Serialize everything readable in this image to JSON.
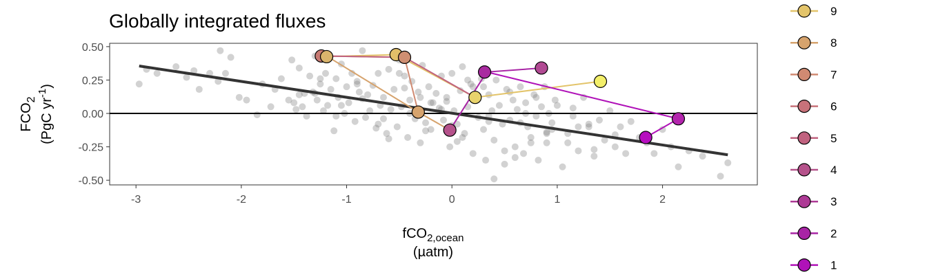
{
  "chart_data": {
    "type": "scatter",
    "title": "Globally integrated fluxes",
    "xlabel": {
      "base": "fCO",
      "sub": "2,ocean",
      "unit": "(µatm)"
    },
    "ylabel": {
      "base": "FCO",
      "sub": "2",
      "unit_pre": "(PgC yr",
      "unit_sup": "-1",
      "unit_post": ")"
    },
    "xlim": [
      -3.25,
      2.9
    ],
    "ylim": [
      -0.535,
      0.525
    ],
    "x_ticks": [
      -3,
      -2,
      -1,
      0,
      1,
      2
    ],
    "x_tick_labels": [
      "-3",
      "-2",
      "-1",
      "0",
      "1",
      "2"
    ],
    "y_ticks": [
      -0.5,
      -0.25,
      0,
      0.25,
      0.5
    ],
    "y_tick_labels": [
      "-0.50",
      "-0.25",
      "0.00",
      "0.25",
      "0.50"
    ],
    "zero_line": 0,
    "grid": false,
    "regression_line": {
      "x": [
        -2.97,
        2.62
      ],
      "y": [
        0.355,
        -0.31
      ],
      "color": "#333333"
    },
    "background_points": {
      "color": "#7f7f7f",
      "x": [
        -2.97,
        -2.9,
        -2.8,
        -2.62,
        -2.52,
        -2.45,
        -2.4,
        -2.3,
        -2.22,
        -2.2,
        -2.15,
        -2.1,
        -2.02,
        -1.95,
        -1.85,
        -1.8,
        -1.72,
        -1.68,
        -1.62,
        -1.55,
        -1.52,
        -1.48,
        -1.45,
        -1.42,
        -1.4,
        -1.38,
        -1.35,
        -1.32,
        -1.3,
        -1.28,
        -1.25,
        -1.22,
        -1.2,
        -1.18,
        -1.15,
        -1.12,
        -1.1,
        -1.08,
        -1.05,
        -1.02,
        -1.0,
        -0.98,
        -0.95,
        -0.92,
        -0.9,
        -0.88,
        -0.85,
        -0.82,
        -0.8,
        -0.78,
        -0.75,
        -0.72,
        -0.7,
        -0.68,
        -0.65,
        -0.62,
        -0.6,
        -0.58,
        -0.55,
        -0.52,
        -0.5,
        -0.48,
        -0.45,
        -0.42,
        -0.4,
        -0.38,
        -0.35,
        -0.32,
        -0.3,
        -0.28,
        -0.25,
        -0.22,
        -0.2,
        -0.18,
        -0.15,
        -0.12,
        -0.1,
        -0.08,
        -0.05,
        -0.02,
        0.0,
        0.02,
        0.05,
        0.08,
        0.1,
        0.12,
        0.15,
        0.18,
        0.2,
        0.22,
        0.25,
        0.28,
        0.3,
        0.32,
        0.35,
        0.38,
        0.4,
        0.42,
        0.45,
        0.48,
        0.5,
        0.52,
        0.55,
        0.58,
        0.6,
        0.62,
        0.65,
        0.68,
        0.7,
        0.72,
        0.75,
        0.78,
        0.8,
        0.82,
        0.85,
        0.88,
        0.9,
        0.92,
        0.95,
        0.98,
        1.0,
        1.05,
        1.1,
        1.15,
        1.2,
        1.25,
        1.3,
        1.35,
        1.4,
        1.45,
        1.5,
        1.55,
        1.6,
        1.65,
        1.7,
        1.78,
        1.85,
        1.92,
        2.0,
        2.08,
        2.15,
        2.25,
        2.38,
        2.55,
        2.62,
        -1.5,
        -1.3,
        -1.1,
        -0.9,
        -0.7,
        -0.5,
        -0.3,
        -0.1,
        0.1,
        0.3,
        0.5,
        0.7,
        0.9,
        1.1,
        1.3,
        -1.45,
        -1.25,
        -1.05,
        -0.85,
        -0.65,
        -0.45,
        -0.25,
        -0.05,
        0.15,
        0.35,
        0.55,
        0.75,
        0.95,
        1.15,
        1.35,
        1.55,
        -0.6,
        -0.2,
        0.2,
        0.6,
        0.9,
        1.2,
        -0.4,
        0.0,
        0.4,
        0.8,
        0.05,
        0.35,
        0.65
      ],
      "y": [
        0.22,
        0.33,
        0.3,
        0.35,
        0.27,
        0.32,
        0.18,
        0.3,
        0.24,
        0.47,
        0.3,
        0.42,
        0.12,
        0.1,
        -0.01,
        0.22,
        0.05,
        0.18,
        0.26,
        0.1,
        0.4,
        0.03,
        0.34,
        0.05,
        0.15,
        -0.02,
        0.28,
        0.16,
        0.43,
        0.1,
        0.22,
        0.02,
        0.3,
        0.06,
        0.18,
        -0.13,
        0.26,
        0.12,
        0.37,
        0.0,
        0.2,
        0.08,
        0.3,
        -0.06,
        0.24,
        0.16,
        0.47,
        -0.03,
        0.14,
        0.02,
        0.21,
        -0.11,
        0.3,
        0.06,
        0.12,
        -0.15,
        0.33,
        0.03,
        0.18,
        -0.1,
        0.4,
        0.05,
        0.28,
        -0.18,
        0.1,
        0.24,
        -0.04,
        0.16,
        -0.22,
        0.36,
        -0.07,
        0.2,
        -0.12,
        0.08,
        0.15,
        0.04,
        0.28,
        -0.05,
        0.12,
        -0.25,
        0.3,
        0.02,
        -0.08,
        0.17,
        0.35,
        -0.15,
        0.05,
        0.22,
        -0.3,
        0.1,
        -0.03,
        0.26,
        -0.12,
        -0.35,
        0.14,
        0.02,
        -0.2,
        0.25,
        0.06,
        -0.08,
        -0.38,
        0.18,
        -0.05,
        0.1,
        -0.25,
        0.03,
        0.2,
        -0.3,
        0.08,
        -0.1,
        -0.18,
        0.14,
        -0.02,
        -0.35,
        0.05,
        0.2,
        -0.22,
        0.0,
        -0.12,
        0.1,
        0.06,
        -0.4,
        -0.15,
        -0.02,
        -0.28,
        0.12,
        -0.08,
        -0.32,
        -0.05,
        -0.2,
        0.02,
        -0.25,
        -0.1,
        -0.3,
        -0.06,
        -0.18,
        -0.22,
        -0.3,
        -0.12,
        -0.25,
        -0.4,
        -0.28,
        -0.32,
        -0.47,
        -0.37,
        0.08,
        0.15,
        -0.02,
        0.22,
        -0.08,
        0.3,
        0.12,
        0.03,
        -0.18,
        0.2,
        -0.28,
        0.0,
        -0.15,
        -0.22,
        -0.1,
        0.14,
        0.26,
        0.06,
        0.11,
        -0.04,
        0.19,
        -0.13,
        0.09,
        0.25,
        -0.06,
        0.16,
        -0.22,
        -0.07,
        0.04,
        -0.27,
        -0.16,
        -0.19,
        0.08,
        0.2,
        -0.33,
        -0.14,
        -0.1,
        0.0,
        -0.09,
        -0.49,
        0.12,
        -0.21,
        -0.02,
        -0.07
      ]
    },
    "series": [
      {
        "name": "9",
        "color": "#e3c46a",
        "x": [
          -1.2,
          -0.53,
          0.22,
          1.41
        ],
        "y": [
          0.425,
          0.44,
          0.12,
          0.24
        ]
      },
      {
        "name": "8",
        "color": "#d19f70",
        "x": [
          -1.18,
          -0.32
        ],
        "y": [
          0.425,
          0.01
        ]
      },
      {
        "name": "7",
        "color": "#d08a72",
        "x": [
          -1.22,
          -0.45
        ],
        "y": [
          0.43,
          0.42
        ]
      },
      {
        "name": "6",
        "color": "#c8727a"
      },
      {
        "name": "5",
        "color": "#c0627f"
      },
      {
        "name": "4",
        "color": "#b5528b"
      },
      {
        "name": "3",
        "color": "#ad3a95",
        "x": [
          0.33,
          0.85
        ],
        "y": [
          0.31,
          0.34
        ]
      },
      {
        "name": "2",
        "color": "#a824a5",
        "x": [
          -0.02,
          0.33
        ],
        "y": [
          -0.125,
          0.31
        ]
      },
      {
        "name": "1",
        "color": "#b012b8",
        "x": [
          0.85,
          2.15,
          1.84
        ],
        "y": [
          0.34,
          -0.04,
          -0.18
        ]
      }
    ],
    "trajectory_lines": [
      {
        "color": "#e3c46a",
        "x": [
          -1.2,
          -0.53,
          0.22,
          1.41
        ],
        "y": [
          0.425,
          0.44,
          0.12,
          0.24
        ]
      },
      {
        "color": "#d6a36d",
        "x": [
          -1.18,
          -0.32,
          -0.02
        ],
        "y": [
          0.425,
          0.01,
          -0.125
        ]
      },
      {
        "color": "#d08a72",
        "x": [
          -1.22,
          -0.45,
          -0.32
        ],
        "y": [
          0.43,
          0.42,
          0.01
        ]
      },
      {
        "color": "#c0627f",
        "x": [
          -1.22,
          -0.45,
          0.22
        ],
        "y": [
          0.43,
          0.42,
          0.12
        ]
      },
      {
        "color": "#a824a5",
        "x": [
          -0.02,
          0.33,
          0.85
        ],
        "y": [
          -0.125,
          0.31,
          0.34
        ]
      },
      {
        "color": "#b012b8",
        "x": [
          0.33,
          2.15,
          1.84
        ],
        "y": [
          0.31,
          -0.04,
          -0.18
        ]
      }
    ],
    "points": [
      {
        "x": -1.24,
        "y": 0.43,
        "color": "#c87a73"
      },
      {
        "x": -1.19,
        "y": 0.425,
        "color": "#d9b46c"
      },
      {
        "x": -0.53,
        "y": 0.44,
        "color": "#e1bf69"
      },
      {
        "x": -0.45,
        "y": 0.42,
        "color": "#cf8f72"
      },
      {
        "x": -0.32,
        "y": 0.01,
        "color": "#d6a36d"
      },
      {
        "x": -0.02,
        "y": -0.125,
        "color": "#b5528b"
      },
      {
        "x": 0.22,
        "y": 0.12,
        "color": "#e8d36c"
      },
      {
        "x": 0.31,
        "y": 0.31,
        "color": "#a92aa0"
      },
      {
        "x": 0.85,
        "y": 0.34,
        "color": "#b14a93"
      },
      {
        "x": 1.41,
        "y": 0.24,
        "color": "#f3ef6a"
      },
      {
        "x": 2.15,
        "y": -0.04,
        "color": "#b325ad"
      },
      {
        "x": 1.84,
        "y": -0.18,
        "color": "#b60fbf"
      }
    ],
    "legend": {
      "placement": "right",
      "entries": [
        {
          "label": "9",
          "color": "#e3c46a"
        },
        {
          "label": "8",
          "color": "#d6a36d"
        },
        {
          "label": "7",
          "color": "#d08a72"
        },
        {
          "label": "6",
          "color": "#c8727a"
        },
        {
          "label": "5",
          "color": "#c0627f"
        },
        {
          "label": "4",
          "color": "#b5528b"
        },
        {
          "label": "3",
          "color": "#ad3a95"
        },
        {
          "label": "2",
          "color": "#a824a5"
        },
        {
          "label": "1",
          "color": "#b012b8"
        }
      ]
    }
  }
}
